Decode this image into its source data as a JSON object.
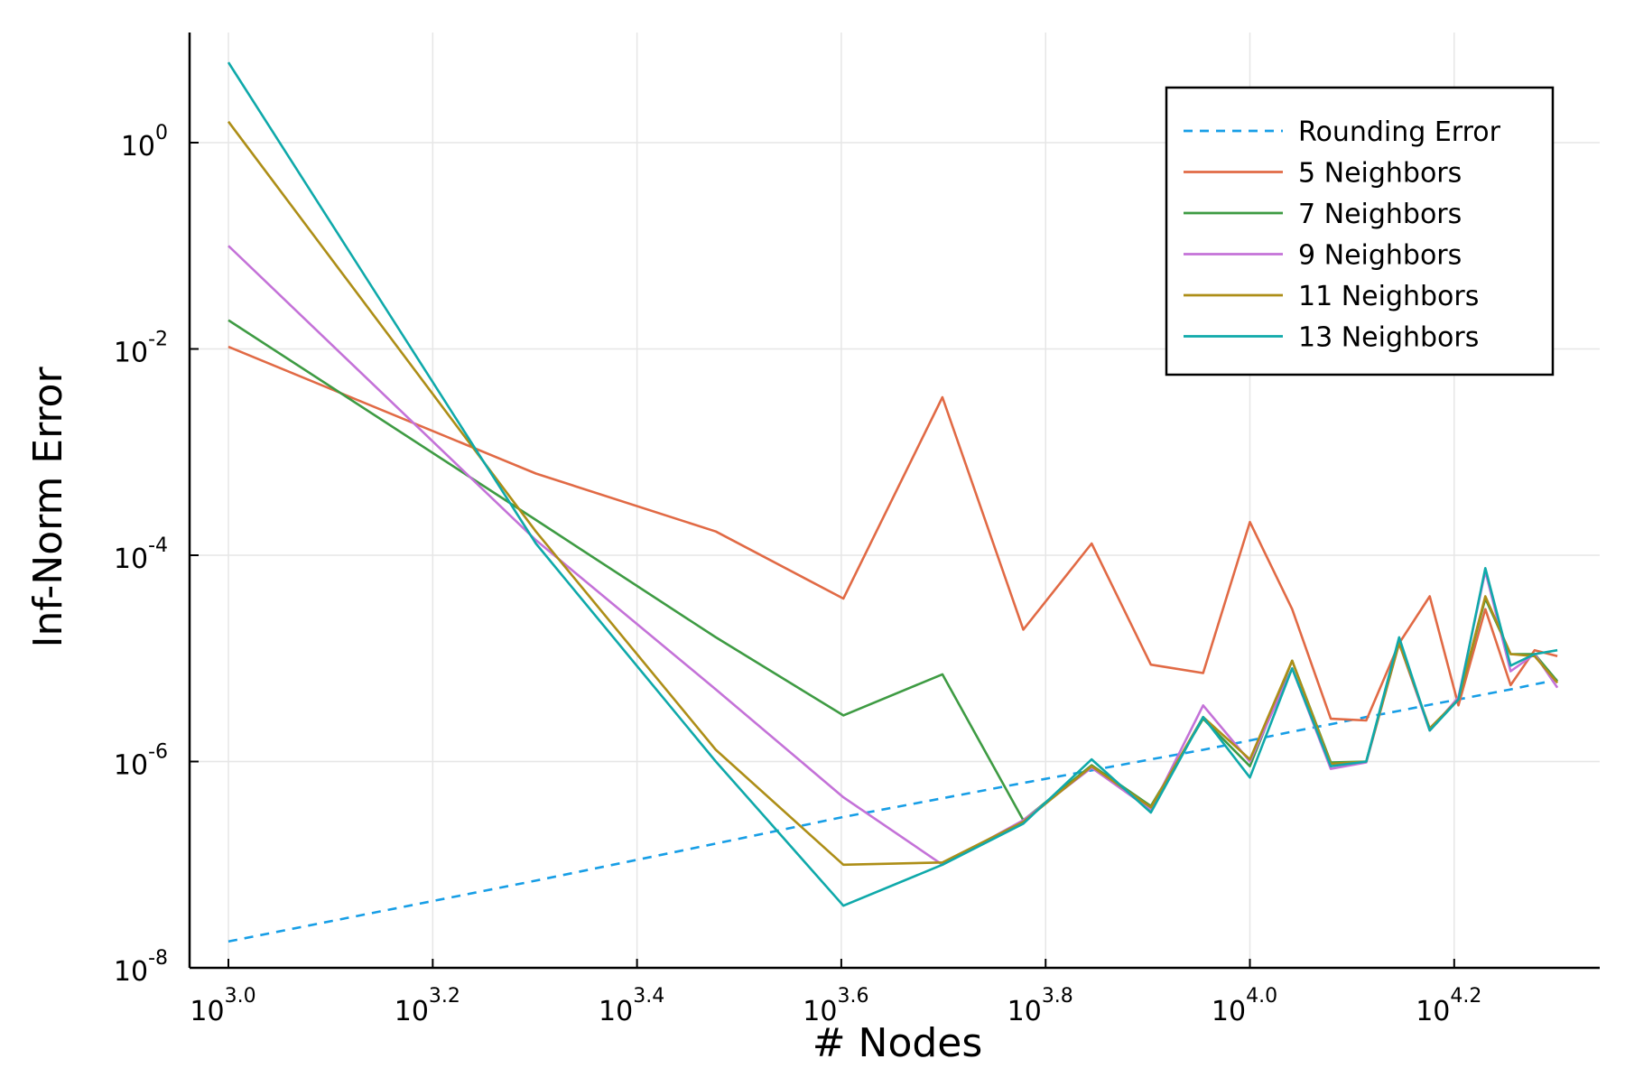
{
  "chart_data": {
    "type": "line",
    "title": "",
    "xlabel": "# Nodes",
    "ylabel": "Inf-Norm Error",
    "x_scale": "log10",
    "y_scale": "log10",
    "xlim": [
      1000,
      20000
    ],
    "ylim": [
      1e-08,
      12
    ],
    "grid": true,
    "legend_position": "top-right",
    "x_ticks": [
      {
        "value": 1000,
        "base": "10",
        "exp": "3.0"
      },
      {
        "value": 1585,
        "base": "10",
        "exp": "3.2"
      },
      {
        "value": 2512,
        "base": "10",
        "exp": "3.4"
      },
      {
        "value": 3981,
        "base": "10",
        "exp": "3.6"
      },
      {
        "value": 6310,
        "base": "10",
        "exp": "3.8"
      },
      {
        "value": 10000,
        "base": "10",
        "exp": "4.0"
      },
      {
        "value": 15849,
        "base": "10",
        "exp": "4.2"
      }
    ],
    "y_ticks": [
      {
        "value": 1e-08,
        "base": "10",
        "exp": "-8"
      },
      {
        "value": 1e-06,
        "base": "10",
        "exp": "-6"
      },
      {
        "value": 0.0001,
        "base": "10",
        "exp": "-4"
      },
      {
        "value": 0.01,
        "base": "10",
        "exp": "-2"
      },
      {
        "value": 1,
        "base": "10",
        "exp": "0"
      }
    ],
    "x": [
      1000,
      2000,
      3000,
      4000,
      5000,
      6000,
      7000,
      8000,
      9000,
      10000,
      11000,
      12000,
      13000,
      14000,
      15000,
      16000,
      17000,
      18000,
      19000,
      20000
    ],
    "series": [
      {
        "name": "Rounding Error",
        "color": "#179ee6",
        "dash": "10,8",
        "values": [
          1.8e-08,
          7e-08,
          1.6e-07,
          2.9e-07,
          4.4e-07,
          6.2e-07,
          8.2e-07,
          1.05e-06,
          1.3e-06,
          1.6e-06,
          1.95e-06,
          2.3e-06,
          2.7e-06,
          3.1e-06,
          3.55e-06,
          4e-06,
          4.5e-06,
          5e-06,
          5.6e-06,
          6.2e-06
        ]
      },
      {
        "name": "5 Neighbors",
        "color": "#e16a45",
        "dash": "",
        "values": [
          0.0105,
          0.00062,
          0.00017,
          3.8e-05,
          0.0034,
          1.9e-05,
          0.00013,
          8.7e-06,
          7.2e-06,
          0.00021,
          3e-05,
          2.6e-06,
          2.5e-06,
          1.4e-05,
          4e-05,
          3.5e-06,
          3e-05,
          5.5e-06,
          1.2e-05,
          1.05e-05
        ]
      },
      {
        "name": "7 Neighbors",
        "color": "#3e9b43",
        "dash": "",
        "values": [
          0.019,
          0.00022,
          1.6e-05,
          2.8e-06,
          7e-06,
          2.7e-07,
          9.2e-07,
          3.7e-07,
          2.6e-06,
          9e-07,
          9.5e-06,
          9.8e-07,
          1e-06,
          1.5e-05,
          2e-06,
          4e-06,
          3.8e-05,
          1.1e-05,
          1.1e-05,
          6e-06
        ]
      },
      {
        "name": "9 Neighbors",
        "color": "#c472d8",
        "dash": "",
        "values": [
          0.1,
          0.00014,
          5e-06,
          4.5e-07,
          1e-07,
          2.7e-07,
          8.7e-07,
          3.4e-07,
          3.5e-06,
          1e-06,
          8e-06,
          8.5e-07,
          9.8e-07,
          1.4e-05,
          2e-06,
          4.2e-06,
          7e-05,
          7.5e-06,
          1.1e-05,
          5.2e-06
        ]
      },
      {
        "name": "11 Neighbors",
        "color": "#ad8e17",
        "dash": "",
        "values": [
          1.6,
          0.00017,
          1.3e-06,
          1e-07,
          1.05e-07,
          2.6e-07,
          9e-07,
          3.6e-07,
          2.7e-06,
          1.05e-06,
          9.5e-06,
          9.5e-07,
          1e-06,
          1.4e-05,
          2.1e-06,
          4e-06,
          4e-05,
          1.1e-05,
          1.05e-05,
          5.8e-06
        ]
      },
      {
        "name": "13 Neighbors",
        "color": "#0fa9aa",
        "dash": "",
        "values": [
          6.0,
          0.00013,
          1e-06,
          4e-08,
          1e-07,
          2.5e-07,
          1.05e-06,
          3.2e-07,
          2.7e-06,
          7e-07,
          8e-06,
          9e-07,
          1e-06,
          1.6e-05,
          2e-06,
          4e-06,
          7.5e-05,
          8.5e-06,
          1.1e-05,
          1.2e-05
        ]
      }
    ]
  }
}
